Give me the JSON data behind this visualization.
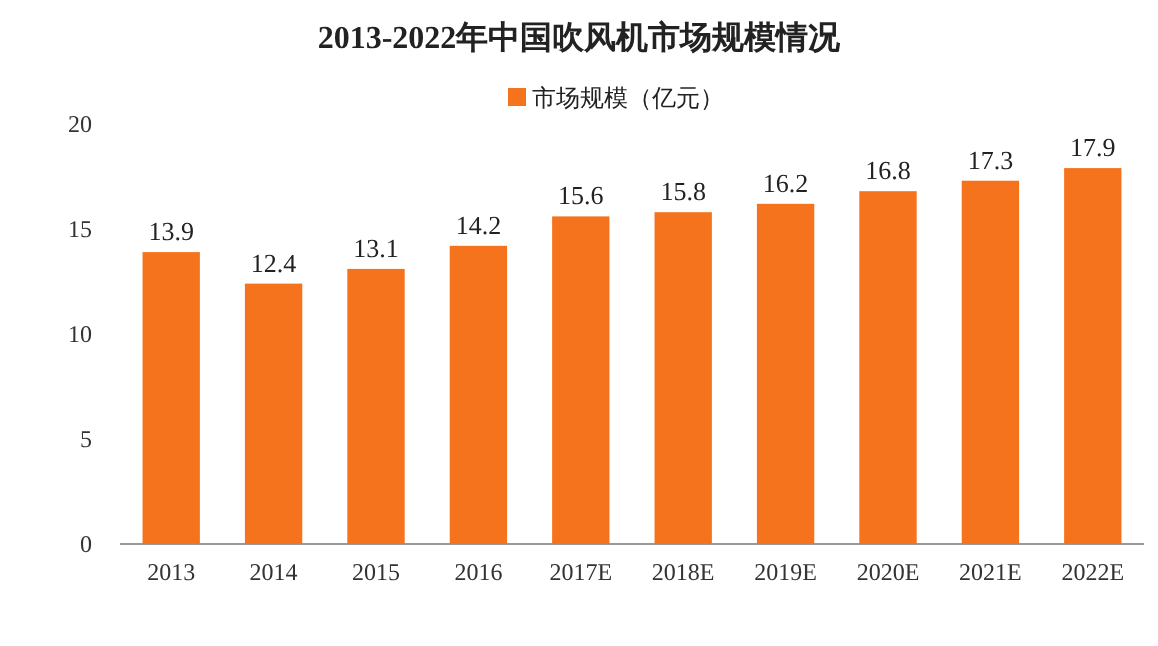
{
  "chart_data": {
    "type": "bar",
    "title": "2013-2022年中国吹风机市场规模情况",
    "categories": [
      "2013",
      "2014",
      "2015",
      "2016",
      "2017E",
      "2018E",
      "2019E",
      "2020E",
      "2021E",
      "2022E"
    ],
    "series": [
      {
        "name": "市场规模（亿元）",
        "color": "#f4731c",
        "values": [
          13.9,
          12.4,
          13.1,
          14.2,
          15.6,
          15.8,
          16.2,
          16.8,
          17.3,
          17.9
        ]
      }
    ],
    "ylim": [
      0,
      20
    ],
    "yticks": [
      0,
      5,
      10,
      15,
      20
    ],
    "grid": false,
    "legend": "top",
    "data_labels": true
  }
}
